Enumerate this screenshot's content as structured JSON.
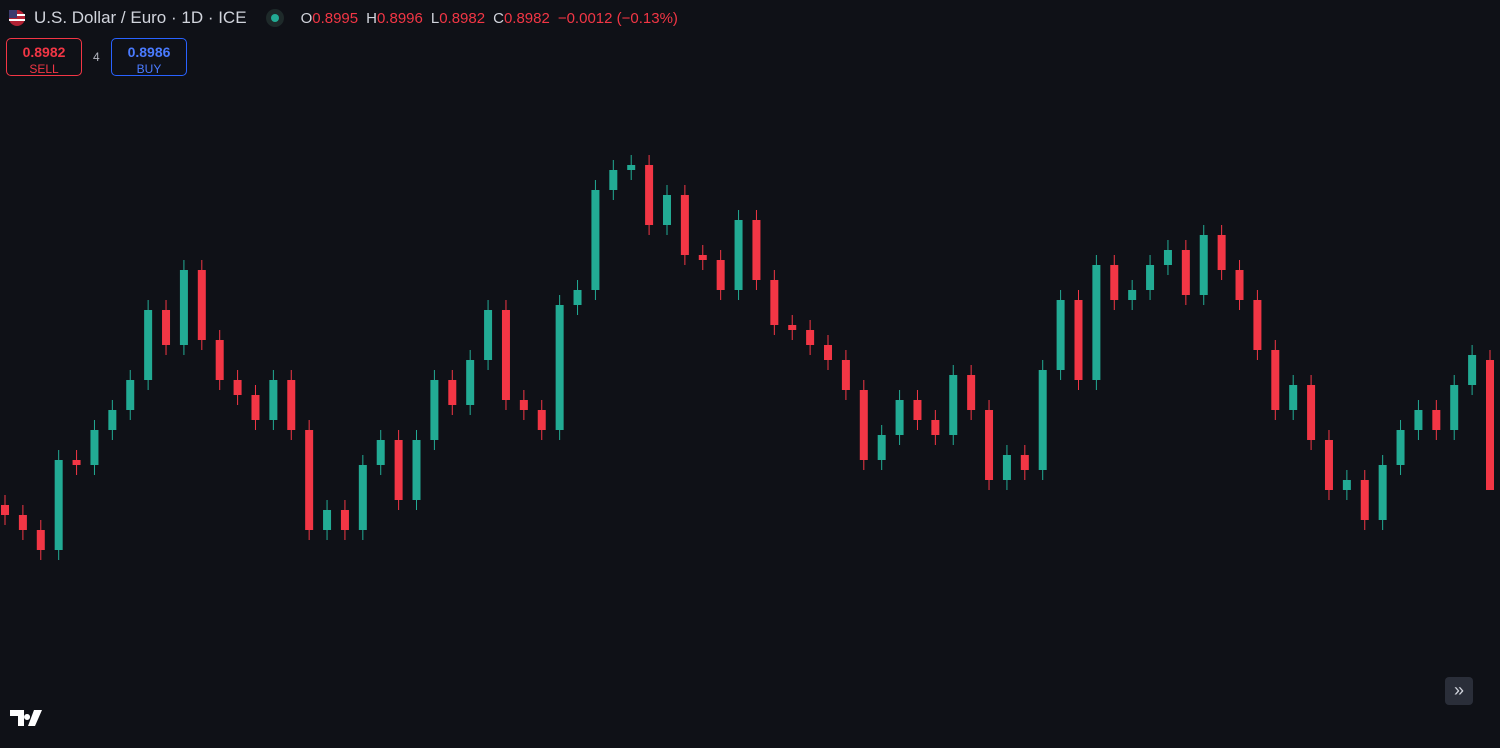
{
  "header": {
    "symbol": "U.S. Dollar / Euro · 1D · ICE",
    "o_label": "O",
    "o_value": "0.8995",
    "h_label": "H",
    "h_value": "0.8996",
    "l_label": "L",
    "l_value": "0.8982",
    "c_label": "C",
    "c_value": "0.8982",
    "change": "−0.0012 (−0.13%)"
  },
  "trade": {
    "sell_price": "0.8982",
    "sell_label": "SELL",
    "spread": "4",
    "buy_price": "0.8986",
    "buy_label": "BUY"
  },
  "chart_data": {
    "type": "candlestick",
    "up_color": "#22ab94",
    "down_color": "#f23645",
    "ylim": [
      0.8963,
      0.9021
    ],
    "open": [
      0.89805,
      0.89795,
      0.8978,
      0.8976,
      0.8985,
      0.89845,
      0.8988,
      0.899,
      0.8993,
      0.9,
      0.89965,
      0.9004,
      0.8997,
      0.8993,
      0.89915,
      0.8989,
      0.8993,
      0.8988,
      0.8978,
      0.898,
      0.8978,
      0.89845,
      0.8987,
      0.8981,
      0.8987,
      0.8993,
      0.89905,
      0.8995,
      0.9,
      0.8991,
      0.899,
      0.8988,
      0.90005,
      0.9002,
      0.9012,
      0.9014,
      0.90145,
      0.90085,
      0.90115,
      0.90055,
      0.9005,
      0.9002,
      0.9009,
      0.9003,
      0.89985,
      0.8998,
      0.89965,
      0.8995,
      0.8992,
      0.8985,
      0.89875,
      0.8991,
      0.8989,
      0.89875,
      0.89935,
      0.899,
      0.8983,
      0.89855,
      0.8984,
      0.8994,
      0.9001,
      0.8993,
      0.90045,
      0.9001,
      0.9002,
      0.90045,
      0.9006,
      0.90015,
      0.90075,
      0.9004,
      0.9001,
      0.8996,
      0.899,
      0.89925,
      0.8987,
      0.8982,
      0.8983,
      0.8979,
      0.89845,
      0.8988,
      0.899,
      0.8988,
      0.89925,
      0.8995
    ],
    "high": [
      0.89815,
      0.89805,
      0.8979,
      0.8986,
      0.8986,
      0.8989,
      0.8991,
      0.8994,
      0.9001,
      0.9001,
      0.9005,
      0.9005,
      0.8998,
      0.8994,
      0.89925,
      0.8994,
      0.8994,
      0.8989,
      0.8981,
      0.8981,
      0.89855,
      0.8988,
      0.8988,
      0.8988,
      0.8994,
      0.8994,
      0.8996,
      0.9001,
      0.9001,
      0.8992,
      0.8991,
      0.90015,
      0.9003,
      0.9013,
      0.9015,
      0.90155,
      0.90155,
      0.90125,
      0.90125,
      0.90065,
      0.9006,
      0.901,
      0.901,
      0.9004,
      0.89995,
      0.8999,
      0.89975,
      0.8996,
      0.8993,
      0.89885,
      0.8992,
      0.8992,
      0.899,
      0.89945,
      0.89945,
      0.8991,
      0.89865,
      0.89865,
      0.8995,
      0.9002,
      0.9002,
      0.90055,
      0.90055,
      0.9003,
      0.90055,
      0.9007,
      0.9007,
      0.90085,
      0.90085,
      0.9005,
      0.9002,
      0.8997,
      0.89935,
      0.89935,
      0.8988,
      0.8984,
      0.8984,
      0.89855,
      0.8989,
      0.8991,
      0.8991,
      0.89935,
      0.89965,
      0.8996
    ],
    "low": [
      0.89785,
      0.8977,
      0.8975,
      0.8975,
      0.89835,
      0.89835,
      0.8987,
      0.8989,
      0.8992,
      0.89955,
      0.89955,
      0.8996,
      0.8992,
      0.89905,
      0.8988,
      0.8988,
      0.8987,
      0.8977,
      0.8977,
      0.8977,
      0.8977,
      0.89835,
      0.898,
      0.898,
      0.8986,
      0.89895,
      0.89895,
      0.8994,
      0.899,
      0.8989,
      0.8987,
      0.8987,
      0.89995,
      0.9001,
      0.9011,
      0.9013,
      0.90075,
      0.90075,
      0.90045,
      0.9004,
      0.9001,
      0.9001,
      0.9002,
      0.89975,
      0.8997,
      0.89955,
      0.8994,
      0.8991,
      0.8984,
      0.8984,
      0.89865,
      0.8988,
      0.89865,
      0.89865,
      0.8989,
      0.8982,
      0.8982,
      0.8983,
      0.8983,
      0.8993,
      0.8992,
      0.8992,
      0.9,
      0.9,
      0.9001,
      0.90035,
      0.90005,
      0.90005,
      0.9003,
      0.9,
      0.8995,
      0.8989,
      0.8989,
      0.8986,
      0.8981,
      0.8981,
      0.8978,
      0.8978,
      0.89835,
      0.8987,
      0.8987,
      0.8987,
      0.89915,
      0.8982
    ],
    "close": [
      0.89795,
      0.8978,
      0.8976,
      0.8985,
      0.89845,
      0.8988,
      0.899,
      0.8993,
      0.9,
      0.89965,
      0.9004,
      0.8997,
      0.8993,
      0.89915,
      0.8989,
      0.8993,
      0.8988,
      0.8978,
      0.898,
      0.8978,
      0.89845,
      0.8987,
      0.8981,
      0.8987,
      0.8993,
      0.89905,
      0.8995,
      0.9,
      0.8991,
      0.899,
      0.8988,
      0.90005,
      0.9002,
      0.9012,
      0.9014,
      0.90145,
      0.90085,
      0.90115,
      0.90055,
      0.9005,
      0.9002,
      0.9009,
      0.9003,
      0.89985,
      0.8998,
      0.89965,
      0.8995,
      0.8992,
      0.8985,
      0.89875,
      0.8991,
      0.8989,
      0.89875,
      0.89935,
      0.899,
      0.8983,
      0.89855,
      0.8984,
      0.8994,
      0.9001,
      0.8993,
      0.90045,
      0.9001,
      0.9002,
      0.90045,
      0.9006,
      0.90015,
      0.90075,
      0.9004,
      0.9001,
      0.8996,
      0.899,
      0.89925,
      0.8987,
      0.8982,
      0.8983,
      0.8979,
      0.89845,
      0.8988,
      0.899,
      0.8988,
      0.89925,
      0.89955,
      0.8982
    ]
  }
}
